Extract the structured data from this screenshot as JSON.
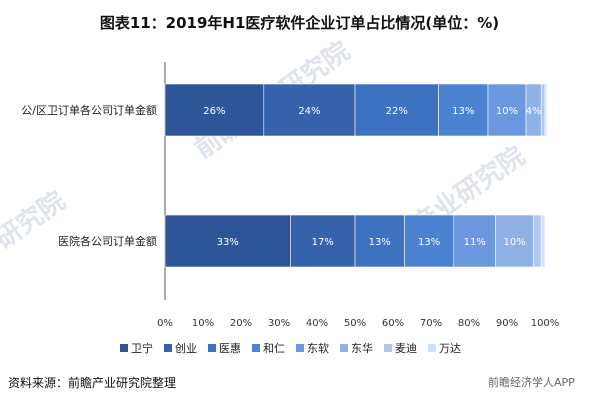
{
  "title": "图表11：2019年H1医疗软件企业订单占比情况(单位：%)",
  "source": "资料来源：前瞻产业研究院整理",
  "brand": "前瞻经济学人APP",
  "watermarks": [
    "前瞻产业研究院",
    "前瞻产业研究院",
    "研究院"
  ],
  "chart_data": {
    "type": "bar",
    "orientation": "horizontal",
    "stacked": true,
    "categories": [
      "公/区卫订单各公司订单金额",
      "医院各公司订单金额"
    ],
    "series": [
      {
        "name": "卫宁",
        "color": "#2e5597",
        "values": [
          26,
          33
        ]
      },
      {
        "name": "创业",
        "color": "#3562ab",
        "values": [
          24,
          17
        ]
      },
      {
        "name": "医惠",
        "color": "#3d71c2",
        "values": [
          22,
          13
        ]
      },
      {
        "name": "和仁",
        "color": "#4b82d2",
        "values": [
          13,
          13
        ]
      },
      {
        "name": "东软",
        "color": "#6a97dd",
        "values": [
          10,
          11
        ]
      },
      {
        "name": "东华",
        "color": "#8fb1e6",
        "values": [
          4,
          10
        ]
      },
      {
        "name": "麦迪",
        "color": "#b1c8ee",
        "values": [
          1,
          2
        ]
      },
      {
        "name": "万达",
        "color": "#d3e1f7",
        "values": [
          0.5,
          1
        ]
      }
    ],
    "data_labels": [
      [
        "26%",
        "24%",
        "22%",
        "13%",
        "10%",
        "4%",
        "",
        ""
      ],
      [
        "33%",
        "17%",
        "13%",
        "13%",
        "11%",
        "10%",
        "",
        ""
      ]
    ],
    "x_ticks": [
      "0%",
      "10%",
      "20%",
      "30%",
      "40%",
      "50%",
      "60%",
      "70%",
      "80%",
      "90%",
      "100%"
    ],
    "xlim": [
      0,
      100
    ],
    "grid": false,
    "legend_position": "bottom"
  }
}
